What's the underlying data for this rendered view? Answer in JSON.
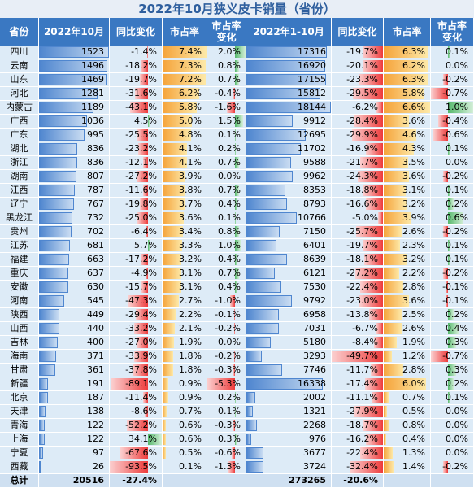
{
  "title": "2022年10月狭义皮卡销量（省份）",
  "table": {
    "header": [
      "省份",
      "2022年10月",
      "同比变化",
      "市占率",
      [
        "市占率",
        "变化"
      ],
      "2022年1-10月",
      "同比变化",
      "市占率",
      [
        "市占率",
        "变化"
      ]
    ],
    "rows": [
      [
        "四川",
        "1523",
        "-1.4%",
        "7.4%",
        "2.0%",
        "17316",
        "-19.7%",
        "6.3%",
        "0.1%"
      ],
      [
        "云南",
        "1496",
        "-18.2%",
        "7.3%",
        "0.8%",
        "16920",
        "-20.1%",
        "6.2%",
        "0.0%"
      ],
      [
        "山东",
        "1469",
        "-19.7%",
        "7.2%",
        "0.7%",
        "17155",
        "-23.3%",
        "6.3%",
        "-0.2%"
      ],
      [
        "河北",
        "1281",
        "-31.6%",
        "6.2%",
        "-0.4%",
        "15812",
        "-29.5%",
        "5.8%",
        "-0.7%"
      ],
      [
        "内蒙古",
        "1189",
        "-43.1%",
        "5.8%",
        "-1.6%",
        "18144",
        "-6.2%",
        "6.6%",
        "1.0%"
      ],
      [
        "广西",
        "1036",
        "4.5%",
        "5.0%",
        "1.5%",
        "9912",
        "-28.4%",
        "3.6%",
        "-0.4%"
      ],
      [
        "广东",
        "995",
        "-25.5%",
        "4.8%",
        "0.1%",
        "12695",
        "-29.9%",
        "4.6%",
        "-0.6%"
      ],
      [
        "湖北",
        "836",
        "-23.2%",
        "4.1%",
        "0.2%",
        "11702",
        "-16.9%",
        "4.3%",
        "0.1%"
      ],
      [
        "浙江",
        "836",
        "-12.1%",
        "4.1%",
        "0.7%",
        "9588",
        "-21.7%",
        "3.5%",
        "0.0%"
      ],
      [
        "湖南",
        "807",
        "-27.2%",
        "3.9%",
        "0.0%",
        "9962",
        "-24.3%",
        "3.6%",
        "-0.2%"
      ],
      [
        "江西",
        "787",
        "-11.6%",
        "3.8%",
        "0.7%",
        "8353",
        "-18.8%",
        "3.1%",
        "0.1%"
      ],
      [
        "辽宁",
        "767",
        "-19.8%",
        "3.7%",
        "0.4%",
        "8793",
        "-16.6%",
        "3.2%",
        "0.2%"
      ],
      [
        "黑龙江",
        "732",
        "-25.0%",
        "3.6%",
        "0.1%",
        "10766",
        "-5.0%",
        "3.9%",
        "0.6%"
      ],
      [
        "贵州",
        "702",
        "-6.4%",
        "3.4%",
        "0.8%",
        "7150",
        "-25.7%",
        "2.6%",
        "-0.2%"
      ],
      [
        "江苏",
        "681",
        "5.7%",
        "3.3%",
        "1.0%",
        "6401",
        "-19.7%",
        "2.3%",
        "0.1%"
      ],
      [
        "福建",
        "663",
        "-17.2%",
        "3.2%",
        "0.4%",
        "8639",
        "-18.1%",
        "3.2%",
        "0.1%"
      ],
      [
        "重庆",
        "637",
        "-4.9%",
        "3.1%",
        "0.7%",
        "6121",
        "-27.2%",
        "2.2%",
        "-0.2%"
      ],
      [
        "安徽",
        "630",
        "-15.7%",
        "3.1%",
        "0.4%",
        "7530",
        "-22.4%",
        "2.8%",
        "-0.1%"
      ],
      [
        "河南",
        "545",
        "-47.3%",
        "2.7%",
        "-1.0%",
        "9792",
        "-23.0%",
        "3.6%",
        "-0.1%"
      ],
      [
        "陕西",
        "449",
        "-29.4%",
        "2.2%",
        "-0.1%",
        "6958",
        "-13.8%",
        "2.5%",
        "0.2%"
      ],
      [
        "山西",
        "440",
        "-33.2%",
        "2.1%",
        "-0.2%",
        "7031",
        "-6.7%",
        "2.6%",
        "0.4%"
      ],
      [
        "吉林",
        "400",
        "-27.0%",
        "1.9%",
        "0.0%",
        "5180",
        "-8.4%",
        "1.9%",
        "0.3%"
      ],
      [
        "海南",
        "371",
        "-33.9%",
        "1.8%",
        "-0.2%",
        "3293",
        "-49.7%",
        "1.2%",
        "-0.7%"
      ],
      [
        "甘肃",
        "361",
        "-37.8%",
        "1.8%",
        "-0.3%",
        "7746",
        "-11.7%",
        "2.8%",
        "0.3%"
      ],
      [
        "新疆",
        "191",
        "-89.1%",
        "0.9%",
        "-5.3%",
        "16338",
        "-17.4%",
        "6.0%",
        "0.2%"
      ],
      [
        "北京",
        "187",
        "-11.4%",
        "0.9%",
        "0.2%",
        "2002",
        "-11.1%",
        "0.7%",
        "0.1%"
      ],
      [
        "天津",
        "138",
        "-8.6%",
        "0.7%",
        "0.1%",
        "1321",
        "-27.9%",
        "0.5%",
        "0.0%"
      ],
      [
        "青海",
        "122",
        "-52.2%",
        "0.6%",
        "-0.3%",
        "2268",
        "-18.7%",
        "0.8%",
        "0.0%"
      ],
      [
        "上海",
        "122",
        "34.1%",
        "0.6%",
        "0.3%",
        "976",
        "-16.2%",
        "0.4%",
        "0.0%"
      ],
      [
        "宁夏",
        "97",
        "-67.6%",
        "0.5%",
        "-0.6%",
        "3677",
        "-22.4%",
        "1.3%",
        "0.0%"
      ],
      [
        "西藏",
        "26",
        "-93.5%",
        "0.1%",
        "-1.3%",
        "3724",
        "-32.4%",
        "1.4%",
        "-0.2%"
      ]
    ],
    "total": {
      "label": "总计",
      "month": "20516",
      "month_yoy": "-27.4%",
      "ytd": "273265",
      "ytd_yoy": "-20.6%"
    }
  }
}
